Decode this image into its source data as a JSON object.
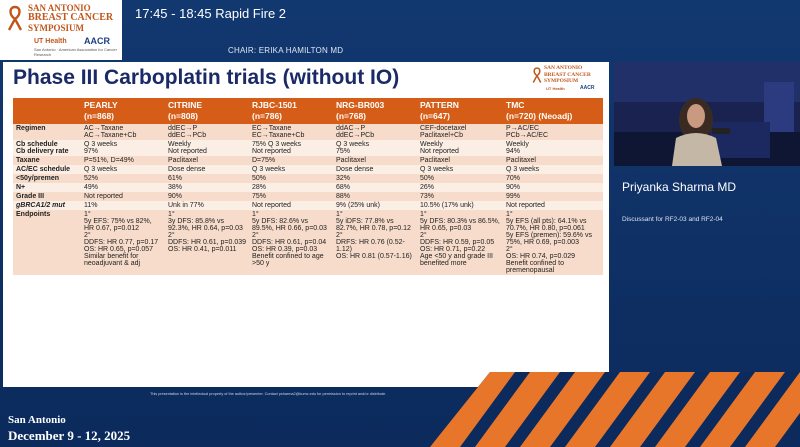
{
  "header": {
    "logo": {
      "line1": "SAN ANTONIO",
      "line2": "BREAST CANCER",
      "line3": "SYMPOSIUM",
      "org1": "UT Health",
      "org2": "AACR",
      "fine": "San Antonio · American Association for Cancer Research"
    },
    "session": "17:45 - 18:45   Rapid Fire 2",
    "chair": "CHAIR: ERIKA HAMILTON MD"
  },
  "slide": {
    "title": "Phase III Carboplatin trials (without IO)",
    "logo": {
      "line1": "SAN ANTONIO",
      "line2": "BREAST CANCER",
      "line3": "SYMPOSIUM",
      "org1": "UT Health",
      "org2": "AACR"
    },
    "table": {
      "columns": [
        {
          "name": "PEARLY",
          "sub": "(n=868)"
        },
        {
          "name": "CITRINE",
          "sub": "(n=808)"
        },
        {
          "name": "RJBC-1501",
          "sub": "(n=786)"
        },
        {
          "name": "NRG-BR003",
          "sub": "(n=768)"
        },
        {
          "name": "PATTERN",
          "sub": "(n=647)"
        },
        {
          "name": "TMC",
          "sub": "(n=720) (Neoadj)"
        }
      ],
      "rows": [
        {
          "label": "Regimen",
          "cells": [
            "AC→Taxane\nAC→Taxane+Cb",
            "ddEC→P\nddEC→PCb",
            "EC→Taxane\nEC→Taxane+Cb",
            "ddAC→P\nddEC→PCb",
            "CEF-docetaxel\nPaclitaxel+Cb",
            "P→AC/EC\nPCb→AC/EC"
          ]
        },
        {
          "label": "Cb schedule\nCb delivery rate",
          "cells": [
            "Q 3 weeks\n97%",
            "Weekly\nNot reported",
            "75% Q 3 weeks\nNot reported",
            "Q 3 weeks\n75%",
            "Weekly\nNot reported",
            "Weekly\n94%"
          ]
        },
        {
          "label": "Taxane",
          "cells": [
            "P=51%, D=49%",
            "Paclitaxel",
            "D=75%",
            "Paclitaxel",
            "Paclitaxel",
            "Paclitaxel"
          ]
        },
        {
          "label": "AC/EC schedule",
          "cells": [
            "Q 3 weeks",
            "Dose dense",
            "Q 3 weeks",
            "Dose dense",
            "Q 3 weeks",
            "Q 3 weeks"
          ]
        },
        {
          "label": "<50y/premen",
          "cells": [
            "52%",
            "61%",
            "50%",
            "32%",
            "50%",
            "70%"
          ]
        },
        {
          "label": "N+",
          "cells": [
            "49%",
            "38%",
            "28%",
            "68%",
            "26%",
            "90%"
          ]
        },
        {
          "label": "Grade III",
          "cells": [
            "Not reported",
            "90%",
            "75%",
            "88%",
            "73%",
            "99%"
          ]
        },
        {
          "label": "gBRCA1/2 mut",
          "cells": [
            "11%",
            "Unk in 77%",
            "Not reported",
            "9% (25% unk)",
            "10.5% (17% unk)",
            "Not reported"
          ]
        },
        {
          "label": "Endpoints",
          "cells": [
            "1°\n5y EFS: 75% vs 82%, HR 0.67, p=0.012\n2°\nDDFS: HR 0.77, p=0.17\nOS: HR 0.65, p=0.057\nSimilar benefit for neoadjuvant & adj",
            "1°\n3y DFS: 85.8% vs 92.3%, HR 0.64, p=0.03\n2°\nDDFS: HR 0.61, p=0.039\nOS: HR 0.41, p=0.011",
            "1°\n5y DFS: 82.6% vs 89.5%, HR 0.66, p=0.03\n2°\nDDFS: HR 0.61, p=0.04\nOS: HR 0.39, p=0.03\nBenefit confined to age >50 y",
            "1°\n5y iDFS: 77.8% vs 82.7%, HR 0.78, p=0.12\n2°\nDRFS: HR 0.76 (0.52-1.12)\nOS: HR 0.81 (0.57-1.16)",
            "1°\n5y DFS: 80.3% vs 86.5%, HR 0.65, p=0.03\n2°\nDDFS: HR 0.59, p=0.05\nOS: HR 0.71, p=0.22\nAge <50 y and grade III benefited more",
            "1°\n5y EFS (all pts): 64.1% vs 70.7%, HR 0.80, p=0.061\n5y EFS (premen): 59.6% vs 75%, HR 0.69, p=0.003\n2°\nOS: HR 0.74, p=0.029\nBenefit confined to premenopausal"
          ]
        }
      ]
    }
  },
  "speaker": {
    "name": "Priyanka Sharma MD",
    "role": "Discussant for RF2-03 and RF2-04"
  },
  "footer": {
    "disclaimer": "This presentation is the intellectual property of the author/presenter. Contact psharma2@kumc.edu for permission to reprint and/or distribute.",
    "city": "San Antonio",
    "dates": "December 9 - 12, 2025"
  },
  "colors": {
    "background": "#0c2a5c",
    "table_header": "#d55d17",
    "title": "#1a2a66",
    "accent_orange": "#e8762a"
  }
}
